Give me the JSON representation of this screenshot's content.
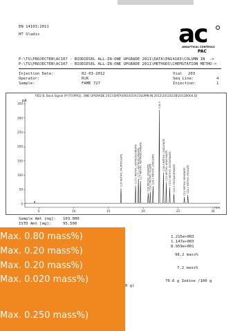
{
  "header": {
    "standard": "EN 14103:2011",
    "author": "HT Sladis",
    "path1": "P:\\TG\\PROJECTEN\\AC107 - BIODIESEL ALL-IN-ONE UPGRADE 2011\\DATA\\EN14103\\COLUMN IN  ->",
    "path2": "P:\\TG\\PROJECTEN\\AC107 - BIODIESEL ALL-IN-ONE UPGRADE 2011\\METHODS\\CHEMSTATION METHO->"
  },
  "logo": {
    "mark": "ac",
    "subtitle": "ANALYTICAL CONTROLS",
    "brand": "PAC"
  },
  "info": {
    "injection_date_label": "Injection Date:",
    "injection_date": "02-03-2012",
    "operator_label": "Operator:",
    "operator": "RiK",
    "sample_label": "Sample:",
    "sample": "FAME 727",
    "vial_label": "Vial",
    "vial": "203",
    "seq_line_label": "Seq Line:",
    "seq_line": "4",
    "injection_label": "Injection:",
    "injection": "1"
  },
  "chart_data": {
    "type": "line",
    "title": "FID2 B, Back Signal (P:\\TG\\PROJ...ONE UPGRADE 2011\\DATA\\EN14103\\COLUMN IN 2012\\2012022B\\2012B004.D)",
    "ylabel": "pA",
    "xunit": "min",
    "xlim": [
      3,
      31
    ],
    "ylim": [
      -5,
      360
    ],
    "xticks": [
      5,
      10,
      15,
      20,
      25,
      30
    ],
    "yticks": [
      0,
      50,
      100,
      150,
      200,
      250,
      300,
      350
    ],
    "baseline": 2,
    "peaks": [
      {
        "x": 4.4,
        "y": 10,
        "label": ""
      },
      {
        "x": 16.8,
        "y": 55,
        "label": "C16 METHYL PALMITOLEATE"
      },
      {
        "x": 18.9,
        "y": 64,
        "label": "C17:0 METHYL HEPTADECANOATE"
      },
      {
        "x": 19.3,
        "y": 88,
        "label": "C17:1 HEPTADECANOATE"
      },
      {
        "x": 19.6,
        "y": 80,
        "label": "C17 METHYL HEPTADECANOATE"
      },
      {
        "x": 20.7,
        "y": 38,
        "label": "C18 METHYL STEARATE"
      },
      {
        "x": 21.0,
        "y": 42,
        "label": "C18:1 METHYL OLEATE"
      },
      {
        "x": 21.4,
        "y": 62,
        "label": "C18:2 METHYL LINOLEATE"
      },
      {
        "x": 22.3,
        "y": 328,
        "label": "C18:3"
      },
      {
        "x": 22.9,
        "y": 110,
        "label": "C18:3 METHYL LINOLENATE"
      },
      {
        "x": 23.3,
        "y": 76,
        "label": "C20 METHYL ARACHIDATE"
      },
      {
        "x": 23.8,
        "y": 58,
        "label": "C20:1 METHYL EICOSENOATE"
      },
      {
        "x": 24.4,
        "y": 35,
        "label": "C20:2 EICOSADIENOATE"
      },
      {
        "x": 25.9,
        "y": 24,
        "label": "C22 METHYL BEHENATE"
      },
      {
        "x": 26.4,
        "y": 31,
        "label": "C22:1 METHYL ERUCATE"
      }
    ]
  },
  "sample_amt": {
    "sample_label": "Sample Amt [mg]:",
    "sample_value": "103.000",
    "istd_label": "ISTD Amt [mg]:",
    "istd_value": "95.500"
  },
  "results": {
    "right_values": [
      "1.215e+003",
      "1.147e+003",
      "8.959e+001"
    ],
    "ester_content": "98.2 mass%",
    "c18_3": "7.2 mass%",
    "iodine": "70.6 g Iodine /100 g",
    "iodine_tail": "0 g)"
  },
  "overlay": {
    "color": "#f0871f",
    "lines": [
      "Max. 0.80 mass%)",
      "Max. 0.20 mass%)",
      "Max. 0.20 mass%)",
      "Max. 0.020 mass%)",
      "",
      "Max. 0.250 mass%)"
    ]
  }
}
